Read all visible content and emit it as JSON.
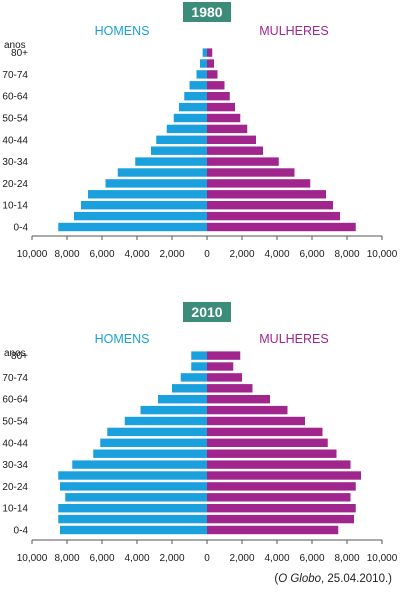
{
  "colors": {
    "men": "#1aa0dc",
    "women": "#a0268e",
    "badge": "#3b8c78",
    "axis": "#555555"
  },
  "chart_data": [
    {
      "type": "bar",
      "title": "1980",
      "ylabel": "anos",
      "left_label": "HOMENS",
      "right_label": "MULHERES",
      "categories": [
        "0-4",
        "5-9",
        "10-14",
        "15-19",
        "20-24",
        "25-29",
        "30-34",
        "35-39",
        "40-44",
        "45-49",
        "50-54",
        "55-59",
        "60-64",
        "65-69",
        "70-74",
        "75-79",
        "80+"
      ],
      "ytick_labels": [
        "0-4",
        "",
        "10-14",
        "",
        "20-24",
        "",
        "30-34",
        "",
        "40-44",
        "",
        "50-54",
        "",
        "60-64",
        "",
        "70-74",
        "",
        "80+"
      ],
      "xlim": [
        -10000,
        10000
      ],
      "xtick_labels": [
        "10,000",
        "8,000",
        "6,000",
        "4,000",
        "2,000",
        "0",
        "2,000",
        "4,000",
        "6,000",
        "8,000",
        "10,000"
      ],
      "series": [
        {
          "name": "HOMENS",
          "values": [
            8500,
            7600,
            7200,
            6800,
            5800,
            5100,
            4100,
            3200,
            2900,
            2300,
            1900,
            1600,
            1300,
            1000,
            600,
            400,
            250
          ]
        },
        {
          "name": "MULHERES",
          "values": [
            8500,
            7600,
            7200,
            6800,
            5900,
            5000,
            4100,
            3200,
            2800,
            2300,
            1900,
            1600,
            1300,
            1000,
            600,
            400,
            300
          ]
        }
      ]
    },
    {
      "type": "bar",
      "title": "2010",
      "ylabel": "anos",
      "left_label": "HOMENS",
      "right_label": "MULHERES",
      "categories": [
        "0-4",
        "5-9",
        "10-14",
        "15-19",
        "20-24",
        "25-29",
        "30-34",
        "35-39",
        "40-44",
        "45-49",
        "50-54",
        "55-59",
        "60-64",
        "65-69",
        "70-74",
        "75-79",
        "80+"
      ],
      "ytick_labels": [
        "0-4",
        "",
        "10-14",
        "",
        "20-24",
        "",
        "30-34",
        "",
        "40-44",
        "",
        "50-54",
        "",
        "60-64",
        "",
        "70-74",
        "",
        "80+"
      ],
      "xlim": [
        -10000,
        10000
      ],
      "xtick_labels": [
        "10,000",
        "8,000",
        "6,000",
        "4,000",
        "2,000",
        "0",
        "2,000",
        "4,000",
        "6,000",
        "8,000",
        "10,000"
      ],
      "series": [
        {
          "name": "HOMENS",
          "values": [
            8400,
            8500,
            8500,
            8100,
            8400,
            8500,
            7700,
            6500,
            6100,
            5700,
            4700,
            3800,
            2800,
            2000,
            1500,
            900,
            900
          ]
        },
        {
          "name": "MULHERES",
          "values": [
            7500,
            8400,
            8500,
            8200,
            8500,
            8800,
            8200,
            7400,
            6900,
            6600,
            5600,
            4600,
            3600,
            2600,
            2000,
            1500,
            1900
          ]
        }
      ]
    }
  ],
  "source": {
    "paren_open": "(",
    "publication": "O Globo",
    "rest": ", 25.04.2010.)"
  }
}
